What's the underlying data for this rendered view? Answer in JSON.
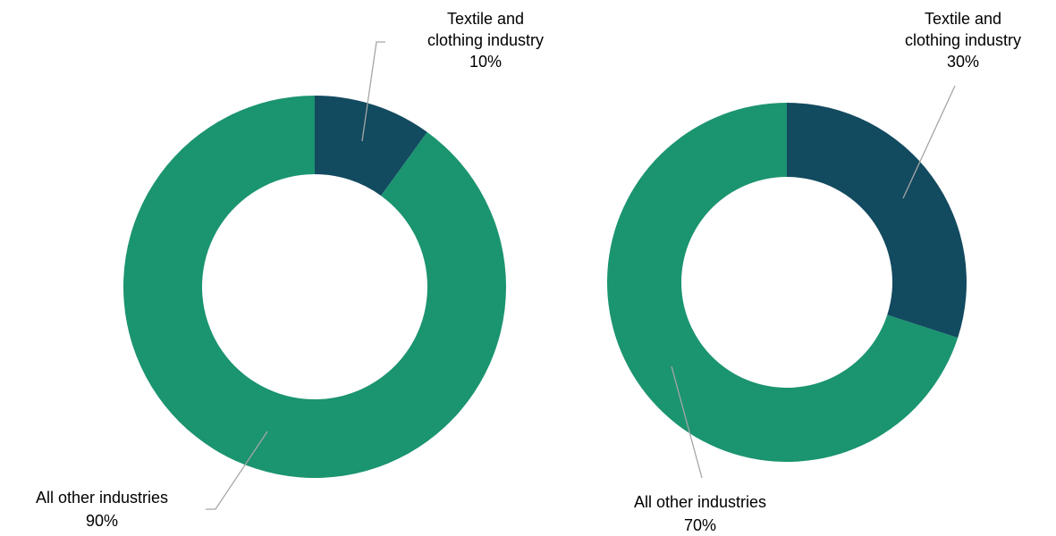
{
  "colors": {
    "textile": "#124a5f",
    "other": "#1b9470",
    "leader": "#a6a6a6",
    "hole": "#ffffff"
  },
  "chart_data": [
    {
      "type": "pie",
      "title": "",
      "categories": [
        "Textile and clothing industry",
        "All other industries"
      ],
      "values": [
        10,
        90
      ],
      "label_lines": [
        [
          "Textile and",
          "clothing industry",
          "10%"
        ],
        [
          "All other industries",
          "90%"
        ]
      ]
    },
    {
      "type": "pie",
      "title": "",
      "categories": [
        "Textile and clothing industry",
        "All other industries"
      ],
      "values": [
        30,
        70
      ],
      "label_lines": [
        [
          "Textile and",
          "clothing industry",
          "30%"
        ],
        [
          "All other industries",
          "70%"
        ]
      ]
    }
  ]
}
